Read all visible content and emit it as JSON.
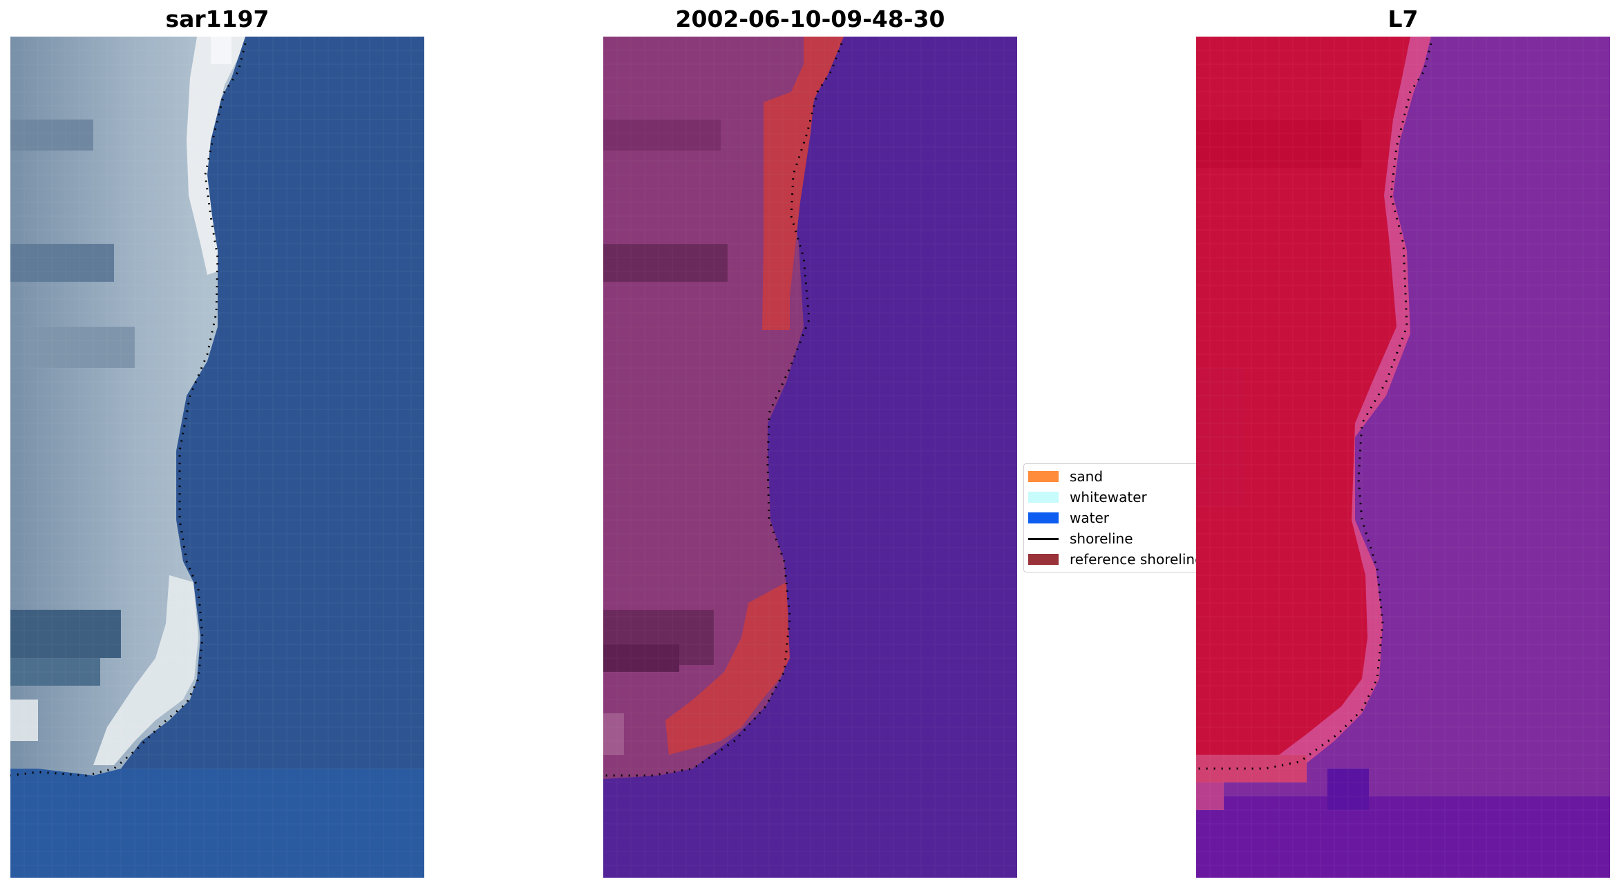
{
  "panels": [
    {
      "id": "left",
      "title": "sar1197"
    },
    {
      "id": "middle",
      "title": "2002-06-10-09-48-30"
    },
    {
      "id": "right",
      "title": "L7"
    }
  ],
  "legend": {
    "items": [
      {
        "label": "sand",
        "color": "#ff8c3a",
        "kind": "patch"
      },
      {
        "label": "whitewater",
        "color": "#c8fcfc",
        "kind": "patch"
      },
      {
        "label": "water",
        "color": "#0c5df0",
        "kind": "patch"
      },
      {
        "label": "shoreline",
        "color": "#000000",
        "kind": "line"
      },
      {
        "label": "reference shoreline",
        "color": "#993339",
        "kind": "patch"
      }
    ]
  },
  "colors": {
    "rgb_water": "#2e5592",
    "rgb_water_deep": "#2a5aa0",
    "rgb_land": "#8aa0b8",
    "rgb_land_dark": "#4a6880",
    "rgb_beach": "#e8ecef",
    "class_water": "#532497",
    "class_land": "#8a3a78",
    "class_land_dark": "#6b2a5c",
    "class_reference_band": "#c03a48",
    "ndwi_land": "#c8103c",
    "ndwi_transition": "#d0488a",
    "ndwi_water": "#7f2c9e",
    "ndwi_water_dark": "#6a18a0",
    "shoreline_dots": "#000000"
  }
}
